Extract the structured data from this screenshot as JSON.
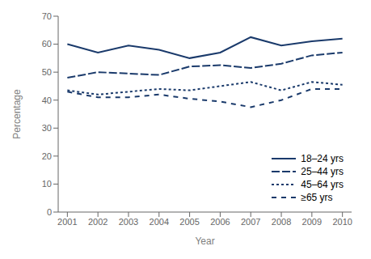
{
  "chart_data": {
    "type": "line",
    "x": [
      2001,
      2002,
      2003,
      2004,
      2005,
      2006,
      2007,
      2008,
      2009,
      2010
    ],
    "series": [
      {
        "name": "18–24 yrs",
        "color": "#1a3a6b",
        "line_style": "solid",
        "values": [
          60,
          57,
          59.5,
          58,
          55,
          57,
          62.5,
          59.5,
          61,
          62
        ]
      },
      {
        "name": "25–44 yrs",
        "color": "#1a3a6b",
        "line_style": "longdash",
        "values": [
          48,
          50,
          49.5,
          49,
          52,
          52.5,
          51.5,
          53,
          56,
          57
        ]
      },
      {
        "name": "45–64 yrs",
        "color": "#1a3a6b",
        "line_style": "dotted",
        "values": [
          43.5,
          42,
          43,
          44,
          43.5,
          45,
          46.5,
          43.5,
          46.5,
          45.5
        ]
      },
      {
        "name": "≥65 yrs",
        "color": "#1a3a6b",
        "line_style": "dashed",
        "values": [
          43,
          41,
          41,
          42,
          40.5,
          39.5,
          37.5,
          40,
          44,
          44
        ]
      }
    ],
    "xlabel": "Year",
    "ylabel": "Percentage",
    "xlim": [
      2000.7,
      2010.3
    ],
    "xticks": [
      2001,
      2002,
      2003,
      2004,
      2005,
      2006,
      2007,
      2008,
      2009,
      2010
    ],
    "ylim": [
      0,
      70
    ],
    "yticks": [
      0,
      10,
      20,
      30,
      40,
      50,
      60,
      70
    ],
    "grid": false,
    "legend": "lower right"
  }
}
